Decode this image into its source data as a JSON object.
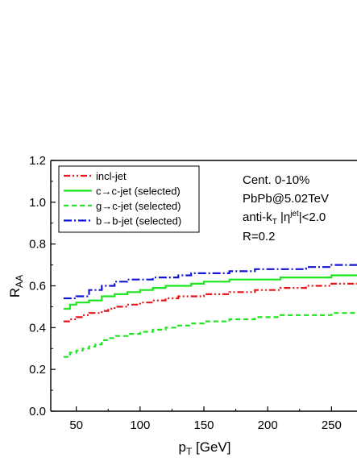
{
  "chart_data": {
    "type": "line",
    "title": "",
    "xlabel": "p",
    "xlabel_sub": "T",
    "xlabel_unit": " [GeV]",
    "ylabel": "R",
    "ylabel_sub": "AA",
    "xlim": [
      30,
      270
    ],
    "ylim": [
      0,
      1.2
    ],
    "xticks": [
      50,
      100,
      150,
      200,
      250
    ],
    "yticks": [
      0.0,
      0.2,
      0.4,
      0.6,
      0.8,
      1.0,
      1.2
    ],
    "ytick_labels": [
      "0.0",
      "0.2",
      "0.4",
      "0.6",
      "0.8",
      "1.0",
      "1.2"
    ],
    "grid": false,
    "legend_position": "top-left",
    "series": [
      {
        "name": "incl-jet",
        "color": "#e8141b",
        "style": "dash-dot-dot",
        "x": [
          40,
          45,
          50,
          55,
          60,
          65,
          70,
          75,
          80,
          90,
          100,
          110,
          120,
          130,
          140,
          150,
          170,
          190,
          210,
          230,
          250,
          270
        ],
        "y": [
          0.43,
          0.44,
          0.45,
          0.46,
          0.47,
          0.47,
          0.48,
          0.49,
          0.5,
          0.51,
          0.52,
          0.53,
          0.54,
          0.55,
          0.55,
          0.56,
          0.57,
          0.58,
          0.59,
          0.6,
          0.61,
          0.61
        ]
      },
      {
        "name": "c→c-jet (selected)",
        "color": "#1ee61e",
        "style": "solid",
        "x": [
          40,
          45,
          50,
          60,
          70,
          80,
          90,
          100,
          110,
          120,
          130,
          140,
          150,
          170,
          190,
          210,
          230,
          250,
          270
        ],
        "y": [
          0.49,
          0.51,
          0.52,
          0.53,
          0.55,
          0.56,
          0.57,
          0.58,
          0.59,
          0.6,
          0.6,
          0.61,
          0.62,
          0.63,
          0.63,
          0.64,
          0.64,
          0.65,
          0.65
        ]
      },
      {
        "name": "g→c-jet (selected)",
        "color": "#1ee61e",
        "style": "dash",
        "x": [
          40,
          45,
          50,
          55,
          60,
          65,
          70,
          75,
          80,
          90,
          100,
          110,
          120,
          130,
          140,
          150,
          170,
          190,
          210,
          230,
          250,
          270
        ],
        "y": [
          0.26,
          0.28,
          0.29,
          0.3,
          0.31,
          0.32,
          0.34,
          0.35,
          0.36,
          0.37,
          0.38,
          0.39,
          0.4,
          0.41,
          0.42,
          0.43,
          0.44,
          0.45,
          0.46,
          0.46,
          0.47,
          0.47
        ]
      },
      {
        "name": "b→b-jet (selected)",
        "color": "#1414d8",
        "style": "dash-dot",
        "x": [
          40,
          50,
          60,
          70,
          80,
          90,
          100,
          110,
          120,
          130,
          140,
          150,
          170,
          190,
          210,
          230,
          250,
          270
        ],
        "y": [
          0.54,
          0.55,
          0.58,
          0.6,
          0.62,
          0.63,
          0.63,
          0.64,
          0.64,
          0.65,
          0.66,
          0.66,
          0.67,
          0.68,
          0.68,
          0.69,
          0.7,
          0.7
        ]
      }
    ],
    "annotations": {
      "centrality": "Cent. 0-10%",
      "system": "PbPb@5.02TeV",
      "algo_prefix": "anti-k",
      "algo_sub": "T",
      "eta_prefix": " |η",
      "eta_sup": "jet",
      "eta_suffix": "|<2.0",
      "radius": "R=0.2"
    }
  }
}
